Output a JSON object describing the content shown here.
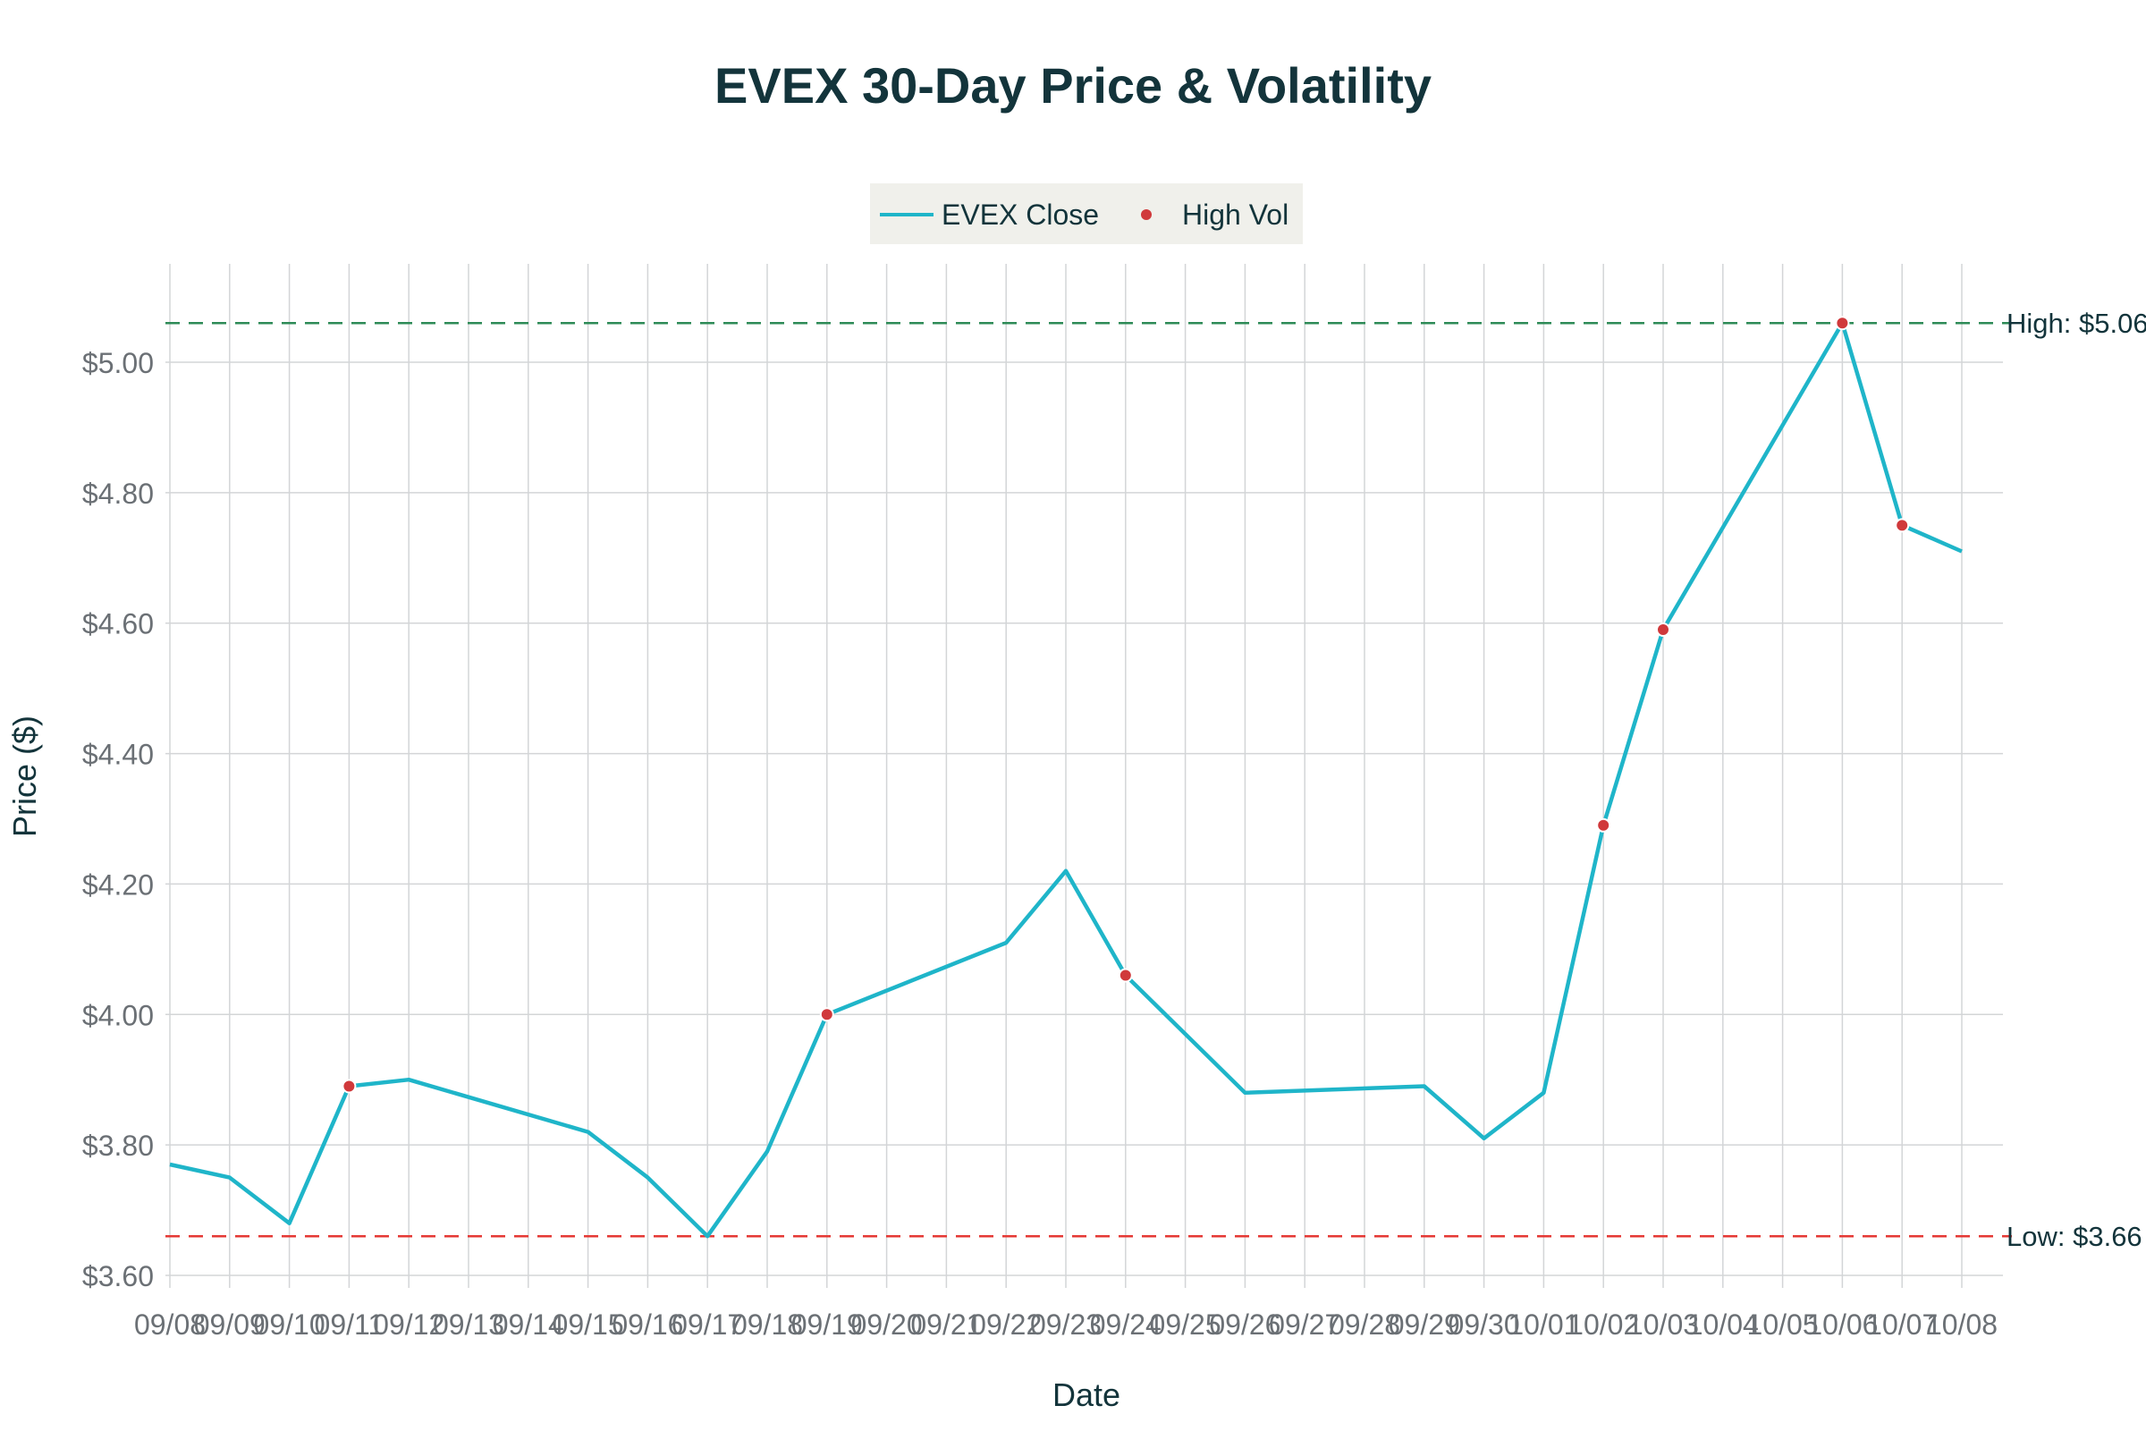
{
  "chart_data": {
    "type": "line",
    "title": "EVEX 30-Day Price & Volatility",
    "xlabel": "Date",
    "ylabel": "Price ($)",
    "ylim": [
      3.6,
      5.1
    ],
    "yticks": [
      3.6,
      3.8,
      4.0,
      4.2,
      4.4,
      4.6,
      4.8,
      5.0
    ],
    "ytick_labels": [
      "$3.60",
      "$3.80",
      "$4.00",
      "$4.20",
      "$4.40",
      "$4.60",
      "$4.80",
      "$5.00"
    ],
    "categories": [
      "09/08",
      "09/09",
      "09/10",
      "09/11",
      "09/12",
      "09/13",
      "09/14",
      "09/15",
      "09/16",
      "09/17",
      "09/18",
      "09/19",
      "09/20",
      "09/21",
      "09/22",
      "09/23",
      "09/24",
      "09/25",
      "09/26",
      "09/27",
      "09/28",
      "09/29",
      "09/30",
      "10/01",
      "10/02",
      "10/03",
      "10/04",
      "10/05",
      "10/06",
      "10/07",
      "10/08"
    ],
    "series": [
      {
        "name": "EVEX Close",
        "color": "#1fb5c9",
        "points": [
          {
            "x": "09/08",
            "y": 3.77
          },
          {
            "x": "09/09",
            "y": 3.75
          },
          {
            "x": "09/10",
            "y": 3.68
          },
          {
            "x": "09/11",
            "y": 3.89
          },
          {
            "x": "09/12",
            "y": 3.9
          },
          {
            "x": "09/15",
            "y": 3.82
          },
          {
            "x": "09/16",
            "y": 3.75
          },
          {
            "x": "09/17",
            "y": 3.66
          },
          {
            "x": "09/18",
            "y": 3.79
          },
          {
            "x": "09/19",
            "y": 4.0
          },
          {
            "x": "09/22",
            "y": 4.11
          },
          {
            "x": "09/23",
            "y": 4.22
          },
          {
            "x": "09/24",
            "y": 4.06
          },
          {
            "x": "09/26",
            "y": 3.88
          },
          {
            "x": "09/29",
            "y": 3.89
          },
          {
            "x": "09/30",
            "y": 3.81
          },
          {
            "x": "10/01",
            "y": 3.88
          },
          {
            "x": "10/02",
            "y": 4.29
          },
          {
            "x": "10/03",
            "y": 4.59
          },
          {
            "x": "10/06",
            "y": 5.06
          },
          {
            "x": "10/07",
            "y": 4.75
          },
          {
            "x": "10/08",
            "y": 4.71
          }
        ]
      },
      {
        "name": "High Vol",
        "color": "#d0393b",
        "points": [
          {
            "x": "09/11",
            "y": 3.89
          },
          {
            "x": "09/19",
            "y": 4.0
          },
          {
            "x": "09/24",
            "y": 4.06
          },
          {
            "x": "10/02",
            "y": 4.29
          },
          {
            "x": "10/03",
            "y": 4.59
          },
          {
            "x": "10/06",
            "y": 5.06
          },
          {
            "x": "10/07",
            "y": 4.75
          }
        ]
      }
    ],
    "reference_lines": [
      {
        "name": "high-line",
        "label": "High: $5.06",
        "y": 5.06,
        "color": "#2e8b57"
      },
      {
        "name": "low-line",
        "label": "Low: $3.66",
        "y": 3.66,
        "color": "#e53935"
      }
    ],
    "legend": {
      "position": "top-center",
      "entries": [
        "EVEX Close",
        "High Vol"
      ]
    },
    "grid": true
  }
}
